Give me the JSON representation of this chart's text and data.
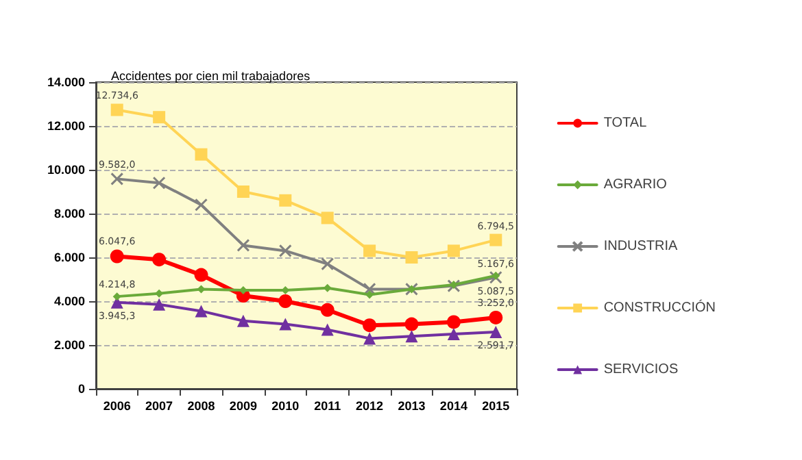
{
  "chart_data": {
    "type": "line",
    "title": "Accidentes por cien mil trabajadores",
    "categories": [
      "2006",
      "2007",
      "2008",
      "2009",
      "2010",
      "2011",
      "2012",
      "2013",
      "2014",
      "2015"
    ],
    "series": [
      {
        "name": "TOTAL",
        "color": "#ff0000",
        "marker": "circle",
        "values": [
          6047.6,
          5900,
          5200,
          4250,
          4000,
          3600,
          2900,
          2950,
          3050,
          3252.0
        ],
        "value_labels": [
          "6.047,6",
          null,
          null,
          null,
          null,
          null,
          null,
          null,
          null,
          "3.252,0"
        ]
      },
      {
        "name": "AGRARIO",
        "color": "#6aaa3a",
        "marker": "diamond",
        "values": [
          4214.8,
          4350,
          4550,
          4500,
          4500,
          4600,
          4300,
          4550,
          4750,
          5167.6
        ],
        "value_labels": [
          "4.214,8",
          null,
          null,
          null,
          null,
          null,
          null,
          null,
          null,
          "5.167,6"
        ]
      },
      {
        "name": "INDUSTRIA",
        "color": "#808080",
        "marker": "cross",
        "values": [
          9582.0,
          9400,
          8400,
          6550,
          6300,
          5700,
          4550,
          4550,
          4700,
          5087.5
        ],
        "value_labels": [
          "9.582,0",
          null,
          null,
          null,
          null,
          null,
          null,
          null,
          null,
          "5.087,5"
        ]
      },
      {
        "name": "CONSTRUCCIÓN",
        "color": "#ffd455",
        "marker": "square",
        "values": [
          12734.6,
          12400,
          10700,
          9000,
          8600,
          7800,
          6300,
          6000,
          6300,
          6794.5
        ],
        "value_labels": [
          "12.734,6",
          null,
          null,
          null,
          null,
          null,
          null,
          null,
          null,
          "6.794,5"
        ]
      },
      {
        "name": "SERVICIOS",
        "color": "#7030a0",
        "marker": "triangle",
        "values": [
          3945.3,
          3850,
          3550,
          3100,
          2950,
          2700,
          2300,
          2400,
          2500,
          2591.7
        ],
        "value_labels": [
          "3.945,3",
          null,
          null,
          null,
          null,
          null,
          null,
          null,
          null,
          "2.591,7"
        ]
      }
    ],
    "ylim": [
      0,
      14000
    ],
    "yticks": [
      {
        "value": 0,
        "label": "0"
      },
      {
        "value": 2000,
        "label": "2.000"
      },
      {
        "value": 4000,
        "label": "4.000"
      },
      {
        "value": 6000,
        "label": "6.000"
      },
      {
        "value": 8000,
        "label": "8.000"
      },
      {
        "value": 10000,
        "label": "10.000"
      },
      {
        "value": 12000,
        "label": "12.000"
      },
      {
        "value": 14000,
        "label": "14.000"
      }
    ],
    "grid": "y",
    "legend": "right",
    "line_style": "solid"
  }
}
